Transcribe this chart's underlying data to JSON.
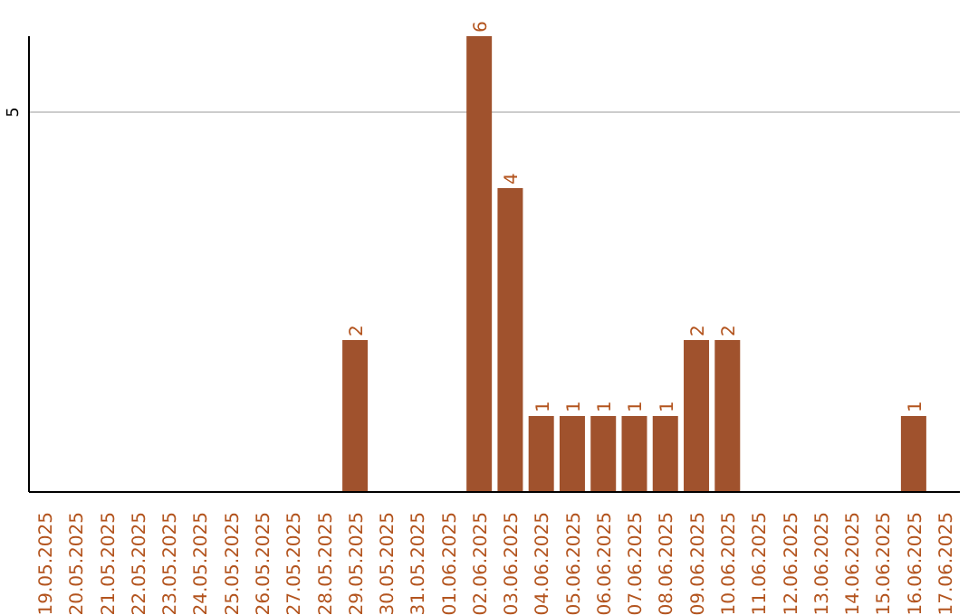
{
  "chart_data": {
    "type": "bar",
    "categories": [
      "19.05.2025",
      "20.05.2025",
      "21.05.2025",
      "22.05.2025",
      "23.05.2025",
      "24.05.2025",
      "25.05.2025",
      "26.05.2025",
      "27.05.2025",
      "28.05.2025",
      "29.05.2025",
      "30.05.2025",
      "31.05.2025",
      "01.06.2025",
      "02.06.2025",
      "03.06.2025",
      "04.06.2025",
      "05.06.2025",
      "06.06.2025",
      "07.06.2025",
      "08.06.2025",
      "09.06.2025",
      "10.06.2025",
      "11.06.2025",
      "12.06.2025",
      "13.06.2025",
      "14.06.2025",
      "15.06.2025",
      "16.06.2025",
      "17.06.2025"
    ],
    "values": [
      0,
      0,
      0,
      0,
      0,
      0,
      0,
      0,
      0,
      0,
      2,
      0,
      0,
      0,
      6,
      4,
      1,
      1,
      1,
      1,
      1,
      2,
      2,
      0,
      0,
      0,
      0,
      0,
      1,
      0
    ],
    "value_labels": [
      null,
      null,
      null,
      null,
      null,
      null,
      null,
      null,
      null,
      null,
      "2",
      null,
      null,
      null,
      "6",
      "4",
      "1",
      "1",
      "1",
      "1",
      "1",
      "2",
      "2",
      null,
      null,
      null,
      null,
      null,
      "1",
      null
    ],
    "color": "#a0522d",
    "ylim": [
      0,
      6
    ],
    "yticks": [
      5
    ],
    "grid": "y"
  }
}
